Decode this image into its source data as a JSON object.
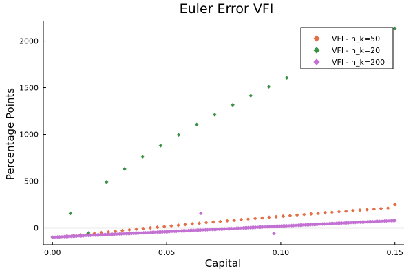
{
  "chart_data": {
    "type": "scatter",
    "title": "Euler Error VFI",
    "xlabel": "Capital",
    "ylabel": "Percentage Points",
    "xlim": [
      -0.004,
      0.154
    ],
    "ylim": [
      -180,
      2210
    ],
    "xticks": [
      0.0,
      0.05,
      0.1,
      0.15
    ],
    "xtick_labels": [
      "0.00",
      "0.05",
      "0.10",
      "0.15"
    ],
    "yticks": [
      0,
      500,
      1000,
      1500,
      2000
    ],
    "ytick_labels": [
      "0",
      "500",
      "1000",
      "1500",
      "2000"
    ],
    "grid": false,
    "zero_line": true,
    "legend_position": "top-right",
    "series": [
      {
        "name": "VFI - n_k=50",
        "color": "#e26f46",
        "marker": "diamond",
        "x": [
          0.0,
          0.00306,
          0.00612,
          0.00918,
          0.01224,
          0.0153,
          0.01837,
          0.02143,
          0.02449,
          0.02755,
          0.03061,
          0.03367,
          0.03673,
          0.03979,
          0.04286,
          0.04592,
          0.04898,
          0.05204,
          0.0551,
          0.05816,
          0.06122,
          0.06429,
          0.06735,
          0.07041,
          0.07347,
          0.07653,
          0.07959,
          0.08265,
          0.08571,
          0.08878,
          0.09184,
          0.0949,
          0.09796,
          0.10102,
          0.10408,
          0.10714,
          0.1102,
          0.11327,
          0.11633,
          0.11939,
          0.12245,
          0.12551,
          0.12857,
          0.13163,
          0.13469,
          0.13776,
          0.14082,
          0.14388,
          0.14694,
          0.15
        ],
        "y": [
          -100,
          -98,
          -91,
          -83,
          -75,
          -67,
          -59,
          -51,
          -44,
          -36,
          -29,
          -21,
          -14,
          -7,
          0,
          7,
          14,
          21,
          28,
          35,
          42,
          48,
          55,
          62,
          68,
          75,
          81,
          88,
          94,
          100,
          106,
          113,
          119,
          125,
          131,
          137,
          143,
          149,
          155,
          161,
          167,
          172,
          178,
          184,
          190,
          195,
          201,
          207,
          212,
          250
        ]
      },
      {
        "name": "VFI - n_k=20",
        "color": "#3a9245",
        "marker": "diamond",
        "x": [
          0.0,
          0.00789,
          0.01579,
          0.02368,
          0.03158,
          0.03947,
          0.04737,
          0.05526,
          0.06316,
          0.07105,
          0.07895,
          0.08684,
          0.09474,
          0.10263,
          0.15
        ],
        "y": [
          -100,
          155,
          -55,
          490,
          630,
          760,
          880,
          995,
          1105,
          1210,
          1315,
          1415,
          1510,
          1605,
          2135
        ]
      },
      {
        "name": "VFI - n_k=200",
        "color": "#c271d2",
        "marker": "diamond",
        "x_start": 0.0,
        "x_end": 0.15,
        "count": 200,
        "y_start": -100,
        "y_end": 78,
        "outliers": [
          {
            "x": 0.065,
            "y": 155
          },
          {
            "x": 0.097,
            "y": -60
          }
        ]
      }
    ]
  }
}
